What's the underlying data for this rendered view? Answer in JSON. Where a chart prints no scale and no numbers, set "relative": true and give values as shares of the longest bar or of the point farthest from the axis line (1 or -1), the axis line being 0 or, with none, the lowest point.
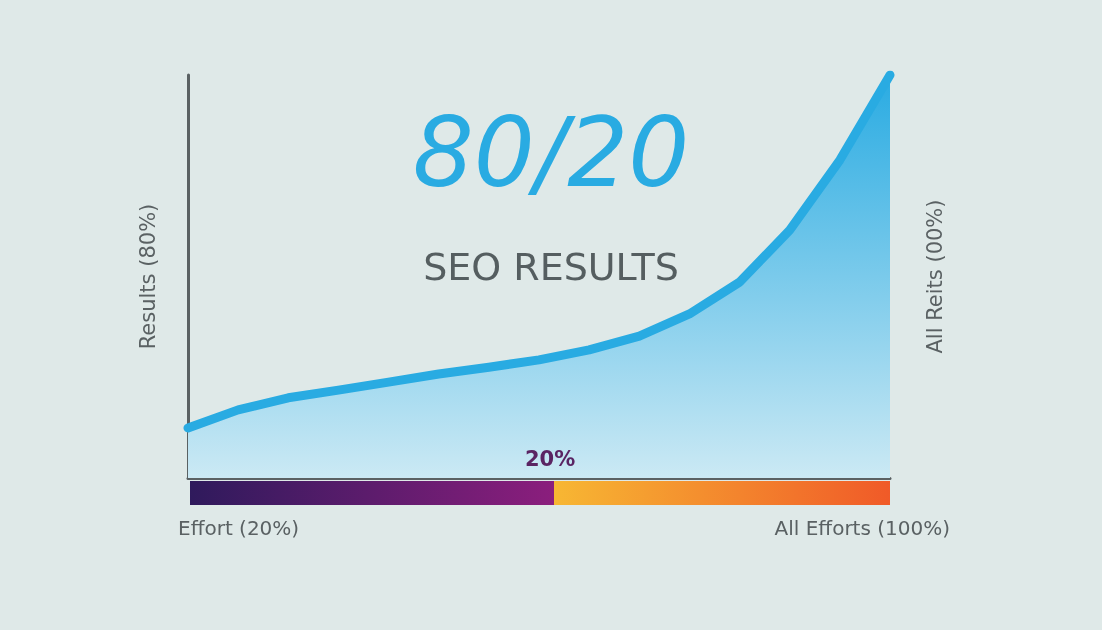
{
  "chart_data": {
    "type": "area",
    "title": "80/20",
    "subtitle": "SEO RESULTS",
    "ylabel": "Results (80%)",
    "y2label": "All Reits (00%)",
    "annotations": [
      "Effort (20%)",
      "All Efforts (100%)",
      "20%"
    ],
    "relative": true,
    "grid": false,
    "categories": [
      null,
      null,
      null,
      null,
      null,
      null,
      null,
      null,
      null,
      null,
      null,
      null,
      null,
      null,
      null
    ],
    "series": [
      {
        "color": "#29abe2",
        "values": [
          0.124,
          0.169,
          0.199,
          0.218,
          0.238,
          0.258,
          0.275,
          0.293,
          0.318,
          0.352,
          0.407,
          0.486,
          0.615,
          0.789,
          1
        ]
      }
    ]
  }
}
